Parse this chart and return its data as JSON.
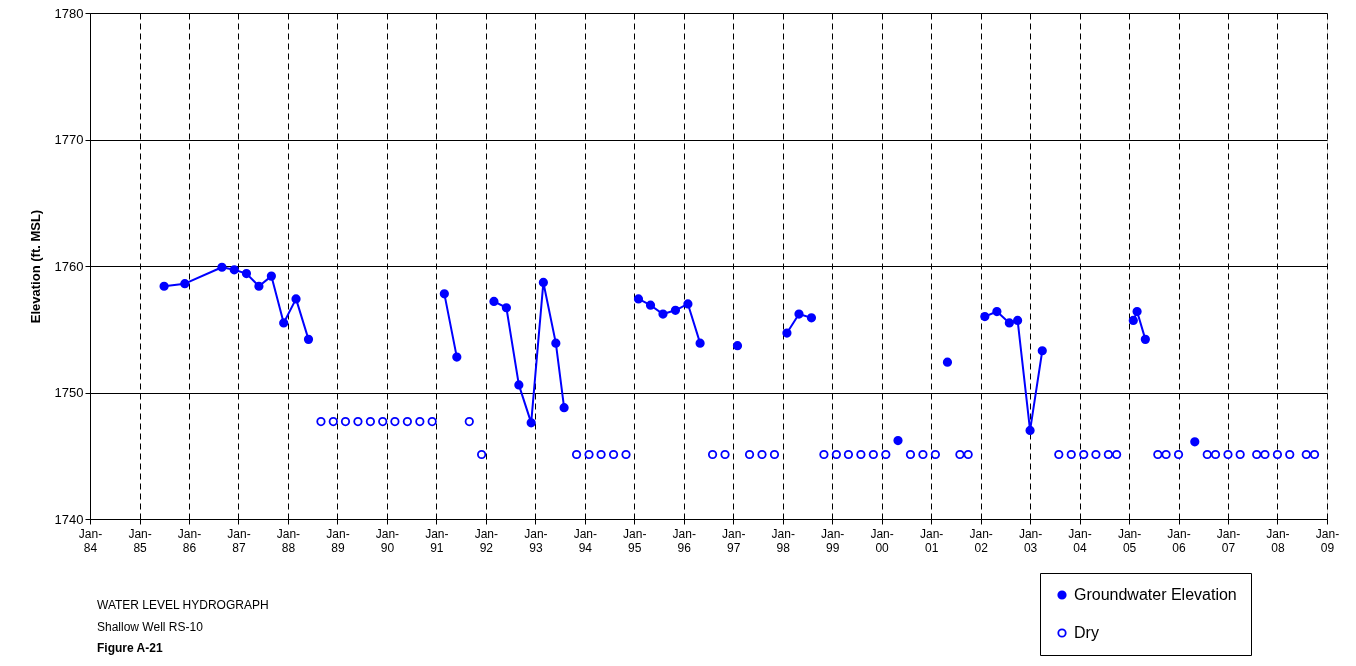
{
  "chart_data": {
    "type": "line",
    "ylabel": "Elevation (ft. MSL)",
    "annotations": [
      "WATER LEVEL HYDROGRAPH",
      "Shallow Well RS-10",
      "Figure A-21"
    ],
    "xlim": [
      "1984-01",
      "2009-01"
    ],
    "xticks": [
      {
        "value": "1984-01",
        "label": "Jan-84"
      },
      {
        "value": "1985-01",
        "label": "Jan-85"
      },
      {
        "value": "1986-01",
        "label": "Jan-86"
      },
      {
        "value": "1987-01",
        "label": "Jan-87"
      },
      {
        "value": "1988-01",
        "label": "Jan-88"
      },
      {
        "value": "1989-01",
        "label": "Jan-89"
      },
      {
        "value": "1990-01",
        "label": "Jan-90"
      },
      {
        "value": "1991-01",
        "label": "Jan-91"
      },
      {
        "value": "1992-01",
        "label": "Jan-92"
      },
      {
        "value": "1993-01",
        "label": "Jan-93"
      },
      {
        "value": "1994-01",
        "label": "Jan-94"
      },
      {
        "value": "1995-01",
        "label": "Jan-95"
      },
      {
        "value": "1996-01",
        "label": "Jan-96"
      },
      {
        "value": "1997-01",
        "label": "Jan-97"
      },
      {
        "value": "1998-01",
        "label": "Jan-98"
      },
      {
        "value": "1999-01",
        "label": "Jan-99"
      },
      {
        "value": "2000-01",
        "label": "Jan-00"
      },
      {
        "value": "2001-01",
        "label": "Jan-01"
      },
      {
        "value": "2002-01",
        "label": "Jan-02"
      },
      {
        "value": "2003-01",
        "label": "Jan-03"
      },
      {
        "value": "2004-01",
        "label": "Jan-04"
      },
      {
        "value": "2005-01",
        "label": "Jan-05"
      },
      {
        "value": "2006-01",
        "label": "Jan-06"
      },
      {
        "value": "2007-01",
        "label": "Jan-07"
      },
      {
        "value": "2008-01",
        "label": "Jan-08"
      },
      {
        "value": "2009-01",
        "label": "Jan-09"
      }
    ],
    "ylim": [
      1740,
      1780
    ],
    "yticks": [
      1740,
      1750,
      1760,
      1770,
      1780
    ],
    "grid": true,
    "legend": "bottom right",
    "series": [
      {
        "name": "Groundwater Elevation",
        "type": "line",
        "marker": "circle",
        "color": "#0000ff",
        "x": [
          "1985-07",
          "1985-12",
          "1986-09",
          "1986-12",
          "1987-03",
          "1987-06",
          "1987-09",
          "1987-12",
          "1988-03",
          "1988-06",
          "1990-01",
          "1991-03",
          "1991-06",
          "1991-11",
          "1992-03",
          "1992-06",
          "1992-09",
          "1992-12",
          "1993-03",
          "1993-06",
          "1993-08",
          "1994-06",
          "1995-02",
          "1995-05",
          "1995-08",
          "1995-11",
          "1996-02",
          "1996-05",
          "1996-09",
          "1997-02",
          "1997-08",
          "1998-02",
          "1998-05",
          "1998-08",
          "1999-06",
          "2000-05",
          "2000-11",
          "2001-05",
          "2001-09",
          "2002-02",
          "2002-05",
          "2002-08",
          "2002-10",
          "2003-01",
          "2003-04",
          "2004-03",
          "2005-02",
          "2005-03",
          "2005-05",
          "2005-11",
          "2006-05"
        ],
        "values": [
          1758.4,
          1758.6,
          1759.9,
          1759.7,
          1759.4,
          1758.4,
          1759.2,
          1755.5,
          1757.4,
          1754.2,
          null,
          1757.8,
          1752.8,
          null,
          1757.2,
          1756.7,
          1750.6,
          1747.6,
          1758.7,
          1753.9,
          1748.8,
          null,
          1757.4,
          1756.9,
          1756.2,
          1756.5,
          1757.0,
          1753.9,
          null,
          1753.7,
          null,
          1754.7,
          1756.2,
          1755.9,
          null,
          1746.2,
          null,
          1752.4,
          null,
          1756.0,
          1756.4,
          1755.5,
          1755.7,
          1747.0,
          1753.3,
          null,
          1755.7,
          1756.4,
          1754.2,
          null,
          1746.1
        ]
      },
      {
        "name": "Dry",
        "type": "scatter",
        "marker": "circle",
        "color": "#0000ff",
        "x": [
          "1988-09",
          "1988-12",
          "1989-03",
          "1989-06",
          "1989-09",
          "1989-12",
          "1990-03",
          "1990-06",
          "1990-09",
          "1990-12",
          "1991-09",
          "1991-12",
          "1993-11",
          "1994-02",
          "1994-05",
          "1994-08",
          "1994-11",
          "1996-08",
          "1996-11",
          "1997-05",
          "1997-08",
          "1997-11",
          "1998-11",
          "1999-02",
          "1999-05",
          "1999-08",
          "1999-11",
          "2000-02",
          "2000-08",
          "2000-11",
          "2001-02",
          "2001-08",
          "2001-10",
          "2003-08",
          "2003-11",
          "2004-02",
          "2004-05",
          "2004-08",
          "2004-10",
          "2005-08",
          "2005-10",
          "2006-01",
          "2006-08",
          "2006-10",
          "2007-01",
          "2007-04",
          "2007-08",
          "2007-10",
          "2008-01",
          "2008-04",
          "2008-08",
          "2008-10"
        ],
        "values": [
          1747.7,
          1747.7,
          1747.7,
          1747.7,
          1747.7,
          1747.7,
          1747.7,
          1747.7,
          1747.7,
          1747.7,
          1747.7,
          1745.1,
          1745.1,
          1745.1,
          1745.1,
          1745.1,
          1745.1,
          1745.1,
          1745.1,
          1745.1,
          1745.1,
          1745.1,
          1745.1,
          1745.1,
          1745.1,
          1745.1,
          1745.1,
          1745.1,
          1745.1,
          1745.1,
          1745.1,
          1745.1,
          1745.1,
          1745.1,
          1745.1,
          1745.1,
          1745.1,
          1745.1,
          1745.1,
          1745.1,
          1745.1,
          1745.1,
          1745.1,
          1745.1,
          1745.1,
          1745.1,
          1745.1,
          1745.1,
          1745.1,
          1745.1,
          1745.1,
          1745.1
        ]
      }
    ]
  }
}
